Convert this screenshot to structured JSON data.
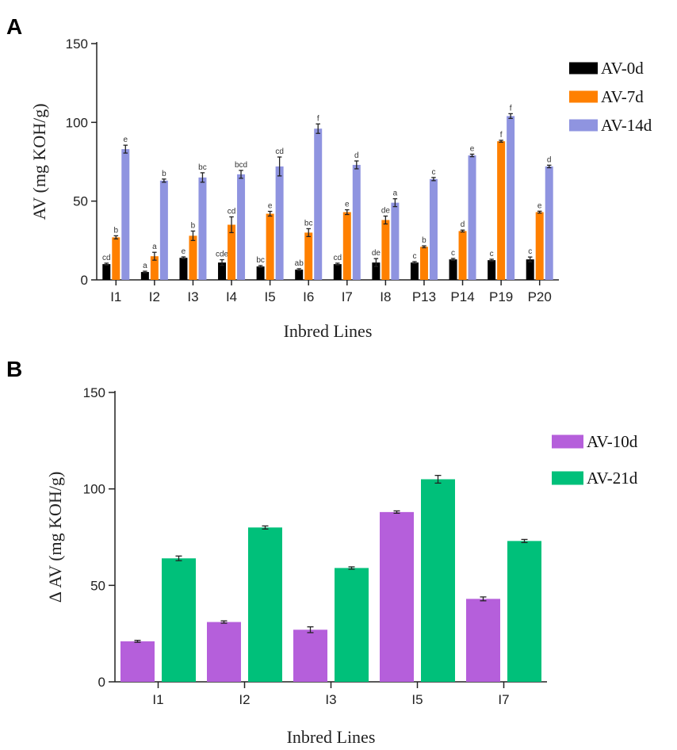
{
  "chart_data": [
    {
      "panel": "A",
      "type": "bar",
      "title": "",
      "xlabel": "Inbred Lines",
      "ylabel": "AV  (mg KOH/g)",
      "ylim": [
        0,
        150
      ],
      "yticks": [
        0,
        50,
        100,
        150
      ],
      "legend_position": "top-right",
      "categories": [
        "I1",
        "I2",
        "I3",
        "I4",
        "I5",
        "I6",
        "I7",
        "I8",
        "P13",
        "P14",
        "P19",
        "P20"
      ],
      "series": [
        {
          "name": "AV-0d",
          "color": "#000000",
          "values": [
            10,
            5,
            14,
            11,
            8.5,
            6.5,
            10,
            11,
            11,
            13,
            12.5,
            13
          ],
          "errors": [
            0.6,
            0.5,
            0.6,
            1.8,
            0.6,
            0.6,
            0.6,
            2.5,
            0.6,
            0.6,
            0.6,
            1.5
          ],
          "labels": [
            "cd",
            "a",
            "e",
            "cde",
            "bc",
            "ab",
            "cd",
            "de",
            "c",
            "c",
            "c",
            "c"
          ]
        },
        {
          "name": "AV-7d",
          "color": "#ff8000",
          "values": [
            27,
            15,
            28,
            35,
            42,
            30,
            43,
            38,
            21,
            31,
            88,
            43
          ],
          "errors": [
            1,
            2.5,
            3,
            5,
            1.5,
            2.5,
            1.5,
            2.5,
            0.6,
            0.6,
            0.6,
            0.6
          ],
          "labels": [
            "b",
            "a",
            "b",
            "cd",
            "e",
            "bc",
            "e",
            "de",
            "b",
            "d",
            "f",
            "e"
          ]
        },
        {
          "name": "AV-14d",
          "color": "#8f94e0",
          "values": [
            83,
            63,
            65,
            67,
            72,
            96,
            73,
            49,
            64,
            79,
            104,
            72
          ],
          "errors": [
            2.5,
            1,
            3,
            2.5,
            6,
            3,
            2.5,
            2.5,
            1,
            0.8,
            1.5,
            0.8
          ],
          "labels": [
            "e",
            "b",
            "bc",
            "bcd",
            "cd",
            "f",
            "d",
            "a",
            "c",
            "e",
            "f",
            "d"
          ]
        }
      ]
    },
    {
      "panel": "B",
      "type": "bar",
      "title": "",
      "xlabel": "Inbred Lines",
      "ylabel": "Δ AV  (mg KOH/g)",
      "ylim": [
        0,
        150
      ],
      "yticks": [
        0,
        50,
        100,
        150
      ],
      "legend_position": "top-right",
      "categories": [
        "I1",
        "I2",
        "I3",
        "I5",
        "I7"
      ],
      "series": [
        {
          "name": "AV-10d",
          "color": "#b55fdb",
          "values": [
            21,
            31,
            27,
            88,
            43
          ],
          "errors": [
            0.5,
            0.6,
            1.5,
            0.6,
            1
          ],
          "labels": []
        },
        {
          "name": "AV-21d",
          "color": "#00c07a",
          "values": [
            64,
            80,
            59,
            105,
            73
          ],
          "errors": [
            1.2,
            0.8,
            0.6,
            2,
            0.8
          ],
          "labels": []
        }
      ]
    }
  ]
}
